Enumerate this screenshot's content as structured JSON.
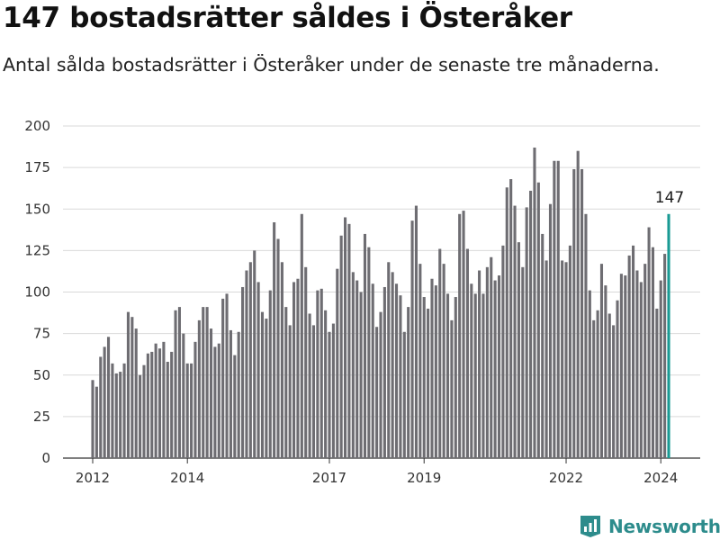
{
  "title": "147 bostadsrätter såldes i Österåker",
  "subtitle": "Antal sålda bostadsrätter i Österåker under de senaste tre månaderna.",
  "brand": {
    "name": "Newsworthy",
    "color": "#2d8c8c",
    "logo_icon": "bar-chart-shield-icon"
  },
  "colors": {
    "bar": "#6e6d72",
    "highlight": "#1a9a94",
    "grid": "#d9d9d9"
  },
  "chart_data": {
    "type": "bar",
    "ylim": [
      0,
      200
    ],
    "yticks": [
      0,
      25,
      50,
      75,
      100,
      125,
      150,
      175,
      200
    ],
    "xticks": [
      "2012",
      "2014",
      "2017",
      "2019",
      "2022",
      "2024"
    ],
    "grid": true,
    "start_month": "2012-01",
    "values": [
      47,
      43,
      61,
      67,
      73,
      57,
      51,
      52,
      57,
      88,
      85,
      78,
      50,
      56,
      63,
      64,
      69,
      66,
      70,
      58,
      64,
      89,
      91,
      75,
      57,
      57,
      70,
      83,
      91,
      91,
      78,
      67,
      69,
      96,
      99,
      77,
      62,
      76,
      103,
      113,
      118,
      125,
      106,
      88,
      84,
      101,
      142,
      132,
      118,
      91,
      80,
      106,
      108,
      147,
      115,
      87,
      80,
      101,
      102,
      89,
      76,
      81,
      114,
      134,
      145,
      141,
      112,
      107,
      100,
      135,
      127,
      105,
      79,
      88,
      103,
      118,
      112,
      105,
      98,
      76,
      91,
      143,
      152,
      117,
      97,
      90,
      108,
      104,
      126,
      117,
      99,
      83,
      97,
      147,
      149,
      126,
      105,
      99,
      113,
      99,
      115,
      121,
      107,
      110,
      128,
      163,
      168,
      152,
      130,
      115,
      151,
      161,
      187,
      166,
      135,
      119,
      153,
      179,
      179,
      119,
      118,
      128,
      174,
      185,
      174,
      147,
      101,
      83,
      89,
      117,
      104,
      87,
      80,
      95,
      111,
      110,
      122,
      128,
      113,
      106,
      117,
      139,
      127,
      90,
      107,
      123,
      147
    ],
    "highlight_label": "147"
  }
}
